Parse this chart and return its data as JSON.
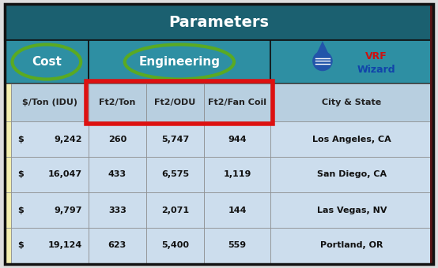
{
  "title": "Parameters",
  "title_bg": "#1b6070",
  "header2_bg": "#2e8fa3",
  "col_header_bg": "#b8cfe0",
  "row_bg": "#ccdded",
  "left_strip_bg": "#f5f0b0",
  "border_color": "#222222",
  "red_box_color": "#dd1111",
  "green_oval_color": "#5aaa22",
  "col_headers": [
    "Â$/Ton (IDU)",
    "Ft2/Ton",
    "Ft2/ODU",
    "Ft2/Fan Coil",
    "City & State"
  ],
  "col_headers_clean": [
    "$/Ton (IDU)",
    "Ft2/Ton",
    "Ft2/ODU",
    "Ft2/Fan Coil",
    "City & State"
  ],
  "rows": [
    [
      "9,242",
      "260",
      "5,747",
      "944",
      "Los Angeles, CA"
    ],
    [
      "16,047",
      "433",
      "6,575",
      "1,119",
      "San Diego, CA"
    ],
    [
      "9,797",
      "333",
      "2,071",
      "144",
      "Las Vegas, NV"
    ],
    [
      "19,124",
      "623",
      "5,400",
      "559",
      "Portland, OR"
    ]
  ],
  "figsize": [
    5.54,
    3.4
  ],
  "dpi": 100
}
